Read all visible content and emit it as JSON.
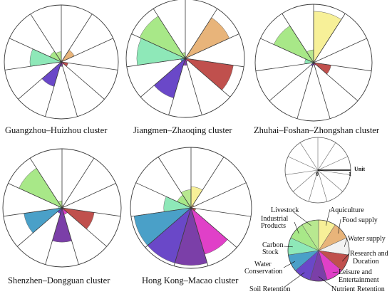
{
  "chart_data": {
    "type": "polar-area",
    "categories": [
      "Aquiculture",
      "Food supply",
      "Water supply",
      "Research and Ducation",
      "Leisure and Entertainment",
      "Nutrient Retention",
      "Soil Retention",
      "Water Conservation",
      "Carbon Stock",
      "Industrial Products",
      "Livestock"
    ],
    "colors": [
      "#f7f098",
      "#e8b47a",
      "#f2f2f2",
      "#c0504d",
      "#e040c8",
      "#7b3fa8",
      "#6a48c8",
      "#4aa0c8",
      "#8ee8b8",
      "#a8e888",
      "#b8e890"
    ],
    "scale_label": "Unit",
    "scale_ticks": [
      "0",
      "1"
    ],
    "charts": [
      {
        "title": "Guangzhou–Huizhou cluster",
        "values": [
          0.02,
          0.25,
          0.0,
          0.12,
          0.05,
          0.08,
          0.45,
          0.0,
          0.55,
          0.22,
          0.18
        ]
      },
      {
        "title": "Jiangmen–Zhaoqing cluster",
        "values": [
          0.03,
          0.82,
          0.0,
          0.82,
          0.06,
          0.12,
          0.7,
          0.08,
          0.82,
          0.85,
          0.1
        ]
      },
      {
        "title": "Zhuhai–Foshan–Zhongshan cluster",
        "values": [
          0.88,
          0.02,
          0.0,
          0.3,
          0.05,
          0.04,
          0.06,
          0.0,
          0.15,
          0.75,
          0.22
        ]
      },
      {
        "title": "Shenzhen–Dongguan cluster",
        "values": [
          0.04,
          0.04,
          0.0,
          0.55,
          0.12,
          0.58,
          0.1,
          0.65,
          0.06,
          0.8,
          0.12
        ]
      },
      {
        "title": "Hong Kong–Macao cluster",
        "values": [
          0.35,
          0.06,
          0.0,
          0.08,
          0.8,
          0.95,
          0.95,
          0.95,
          0.45,
          0.25,
          0.3
        ]
      }
    ]
  }
}
